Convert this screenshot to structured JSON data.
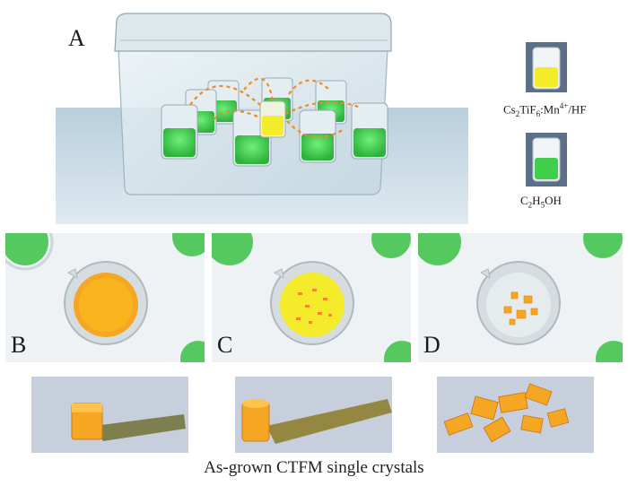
{
  "panels": {
    "a": {
      "label": "A"
    },
    "b": {
      "label": "B"
    },
    "c": {
      "label": "C"
    },
    "d": {
      "label": "D"
    }
  },
  "legend": {
    "solution": {
      "formula": "Cs",
      "sub1": "2",
      "mid": "TiF",
      "sub2": "6",
      "rest": ":Mn",
      "sup": "4+",
      "tail": "/HF"
    },
    "solvent": {
      "pre": "C",
      "sub1": "2",
      "mid": "H",
      "sub2": "5",
      "tail": "OH"
    }
  },
  "caption": "As-grown CTFM single crystals",
  "colors": {
    "solution_yellow": "#f4ec2a",
    "ethanol_green": "#3fcf4a",
    "crystal_orange": "#f5a623",
    "backdrop_blue": "#c9dbe6"
  }
}
